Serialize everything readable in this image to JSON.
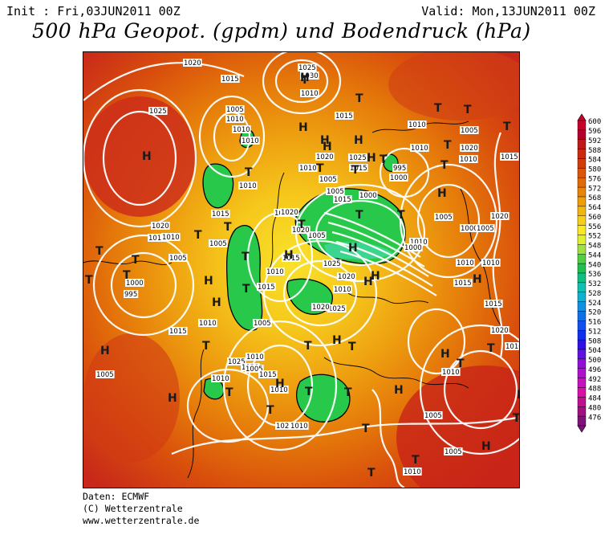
{
  "header": {
    "init": "Init : Fri,03JUN2011 00Z",
    "valid": "Valid: Mon,13JUN2011 00Z",
    "title": "500 hPa Geopot. (gpdm) und Bodendruck (hPa)"
  },
  "credits": {
    "line1": "Daten: ECMWF",
    "line2": "(C) Wetterzentrale",
    "line3": "www.wetterzentrale.de"
  },
  "legend": {
    "levels": [
      "600",
      "596",
      "592",
      "588",
      "584",
      "580",
      "576",
      "572",
      "568",
      "564",
      "560",
      "556",
      "552",
      "548",
      "544",
      "540",
      "536",
      "532",
      "528",
      "524",
      "520",
      "516",
      "512",
      "508",
      "504",
      "500",
      "496",
      "492",
      "488",
      "484",
      "480",
      "476"
    ],
    "colors": [
      "#c8002a",
      "#b4002a",
      "#c01818",
      "#cc2a10",
      "#d23c08",
      "#dc5408",
      "#e26a06",
      "#e88406",
      "#ee9e08",
      "#f2b610",
      "#f6d018",
      "#fae824",
      "#e0f030",
      "#a0e040",
      "#50d040",
      "#20c050",
      "#10c080",
      "#10c0b0",
      "#10b0d0",
      "#1090e0",
      "#1070e8",
      "#1050f0",
      "#1030f0",
      "#3010e8",
      "#6010e0",
      "#9010d8",
      "#b010d0",
      "#c810c0",
      "#d810a8",
      "#c01090",
      "#a01080",
      "#80107a"
    ]
  },
  "map": {
    "pressure_labels": [
      "1020",
      "1015",
      "1025",
      "1005",
      "1010",
      "1010",
      "1010",
      "995",
      "1000",
      "1010",
      "1015",
      "1010",
      "1020",
      "1005",
      "1010",
      "1005",
      "1015",
      "1020",
      "1010",
      "1005",
      "1000",
      "1010",
      "1005",
      "1020",
      "1015",
      "1005",
      "1010",
      "1020",
      "1025",
      "1030",
      "1010",
      "1025",
      "1015",
      "1020",
      "1010",
      "1015",
      "1020",
      "1005",
      "1000",
      "995",
      "1010",
      "1005",
      "1000",
      "1010",
      "1015",
      "1020",
      "1025",
      "1020",
      "1010",
      "1015",
      "1025",
      "1020",
      "1015",
      "1010",
      "1005",
      "1010",
      "1015",
      "1025",
      "1020",
      "1010",
      "1005",
      "1010",
      "1005",
      "1010",
      "1015",
      "1025",
      "1010",
      "1000",
      "1005",
      "1010",
      "1015",
      "1020",
      "1010",
      "1010",
      "1005",
      "1005",
      "1010"
    ],
    "highs": [
      "H",
      "H",
      "H",
      "H",
      "H",
      "H",
      "H",
      "H",
      "H",
      "H",
      "H",
      "H",
      "H",
      "H",
      "H",
      "H",
      "H",
      "H",
      "H",
      "H",
      "H",
      "H",
      "H",
      "H"
    ],
    "lows": [
      "T",
      "T",
      "T",
      "T",
      "T",
      "T",
      "T",
      "T",
      "T",
      "T",
      "T",
      "T",
      "T",
      "T",
      "T",
      "T",
      "T",
      "T",
      "T",
      "T",
      "T",
      "T",
      "T",
      "T",
      "T",
      "T",
      "T",
      "T",
      "T",
      "T",
      "T",
      "T",
      "T",
      "T",
      "T"
    ]
  }
}
